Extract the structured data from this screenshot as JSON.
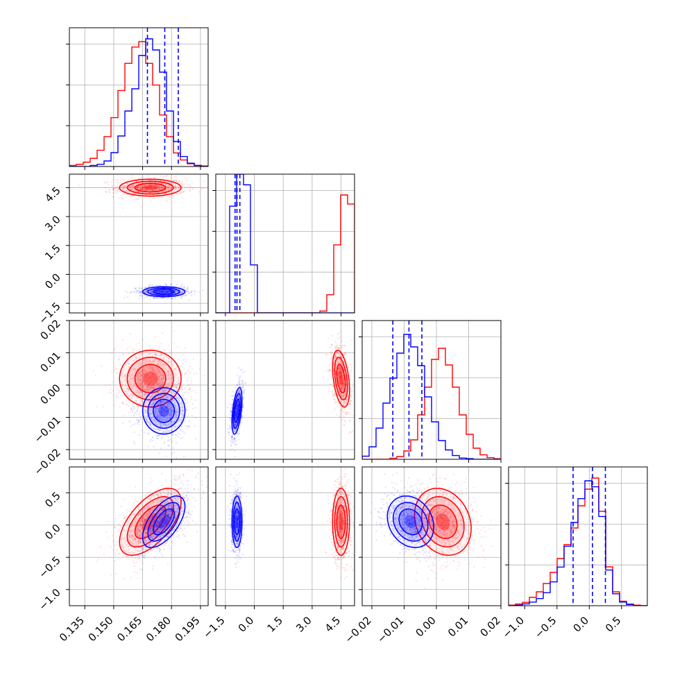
{
  "chart_data": {
    "type": "corner",
    "colors": {
      "series_a": "#0000ff",
      "series_b": "#ff0000"
    },
    "grid": true,
    "parameters": [
      {
        "range": [
          0.127,
          0.199
        ],
        "ticks": [
          0.135,
          0.15,
          0.165,
          0.18,
          0.195
        ],
        "tick_labels": [
          "0.135",
          "0.150",
          "0.165",
          "0.180",
          "0.195"
        ]
      },
      {
        "range": [
          -2.0,
          5.2
        ],
        "ticks": [
          -1.5,
          0.0,
          1.5,
          3.0,
          4.5
        ],
        "tick_labels": [
          "−1.5",
          "0.0",
          "1.5",
          "3.0",
          "4.5"
        ]
      },
      {
        "range": [
          -0.023,
          0.02
        ],
        "ticks": [
          -0.02,
          -0.01,
          0.0,
          0.01,
          0.02
        ],
        "tick_labels": [
          "−0.02",
          "−0.01",
          "0.00",
          "0.01",
          "0.02"
        ]
      },
      {
        "range": [
          -1.25,
          0.9
        ],
        "ticks": [
          -1.0,
          -0.5,
          0.0,
          0.5
        ],
        "tick_labels": [
          "−1.0",
          "−0.5",
          "0.0",
          "0.5"
        ]
      }
    ],
    "series": [
      {
        "color": "#0000ff",
        "means": [
          0.176,
          -0.9,
          -0.008,
          0.05
        ],
        "sds": [
          0.0055,
          0.13,
          0.0036,
          0.2
        ],
        "corr": [
          [
            0,
            3,
            0.6
          ],
          [
            2,
            3,
            -0.2
          ],
          [
            1,
            2,
            0.5
          ]
        ],
        "quantiles": [
          [
            0.1675,
            0.1765,
            0.1835
          ],
          [
            -1.0,
            -0.9,
            -0.75
          ],
          [
            -0.0135,
            -0.0085,
            -0.0045
          ],
          [
            -0.25,
            0.05,
            0.25
          ]
        ],
        "hist_peak_frac": [
          0.92,
          1.0,
          0.9,
          0.9
        ]
      },
      {
        "color": "#ff0000",
        "means": [
          0.169,
          4.5,
          0.002,
          0.05
        ],
        "sds": [
          0.008,
          0.22,
          0.0044,
          0.26
        ],
        "corr": [
          [
            0,
            3,
            0.6
          ],
          [
            2,
            3,
            -0.2
          ],
          [
            1,
            2,
            -0.4
          ]
        ],
        "hist_peak_frac": [
          0.9,
          0.85,
          0.8,
          0.92
        ]
      }
    ],
    "diagonal_histograms": [
      {
        "bins": 20,
        "range": [
          0.127,
          0.199
        ],
        "series_a": [
          0,
          0,
          0,
          2,
          4,
          10,
          25,
          55,
          100,
          140,
          200,
          230,
          210,
          170,
          100,
          45,
          18,
          6,
          2,
          0
        ],
        "series_b": [
          2,
          4,
          8,
          15,
          30,
          55,
          90,
          140,
          190,
          220,
          230,
          190,
          150,
          95,
          55,
          25,
          12,
          5,
          2,
          1
        ]
      },
      {
        "bins": 20,
        "range": [
          -2.0,
          5.2
        ],
        "series_a": [
          0,
          0,
          200,
          260,
          240,
          90,
          0,
          0,
          0,
          0,
          0,
          0,
          0,
          0,
          0,
          0,
          0,
          0,
          0,
          0
        ],
        "series_b": [
          0,
          0,
          0,
          0,
          0,
          0,
          0,
          0,
          0,
          0,
          0,
          0,
          0,
          0,
          0,
          4,
          40,
          150,
          260,
          240
        ]
      },
      {
        "bins": 20,
        "range": [
          -0.023,
          0.02
        ],
        "series_a": [
          5,
          20,
          50,
          90,
          130,
          170,
          200,
          180,
          150,
          100,
          60,
          30,
          15,
          6,
          2,
          1,
          0,
          0,
          0,
          0
        ],
        "series_b": [
          0,
          0,
          0,
          0,
          2,
          5,
          15,
          35,
          80,
          130,
          180,
          200,
          170,
          130,
          80,
          45,
          20,
          8,
          3,
          1
        ]
      },
      {
        "bins": 20,
        "range": [
          -1.25,
          0.9
        ],
        "series_a": [
          0,
          1,
          3,
          6,
          12,
          22,
          40,
          65,
          100,
          140,
          180,
          210,
          200,
          150,
          60,
          20,
          6,
          2,
          0,
          0
        ],
        "series_b": [
          1,
          3,
          6,
          15,
          25,
          40,
          60,
          85,
          110,
          140,
          180,
          210,
          230,
          170,
          70,
          25,
          8,
          3,
          1,
          0
        ]
      }
    ]
  }
}
